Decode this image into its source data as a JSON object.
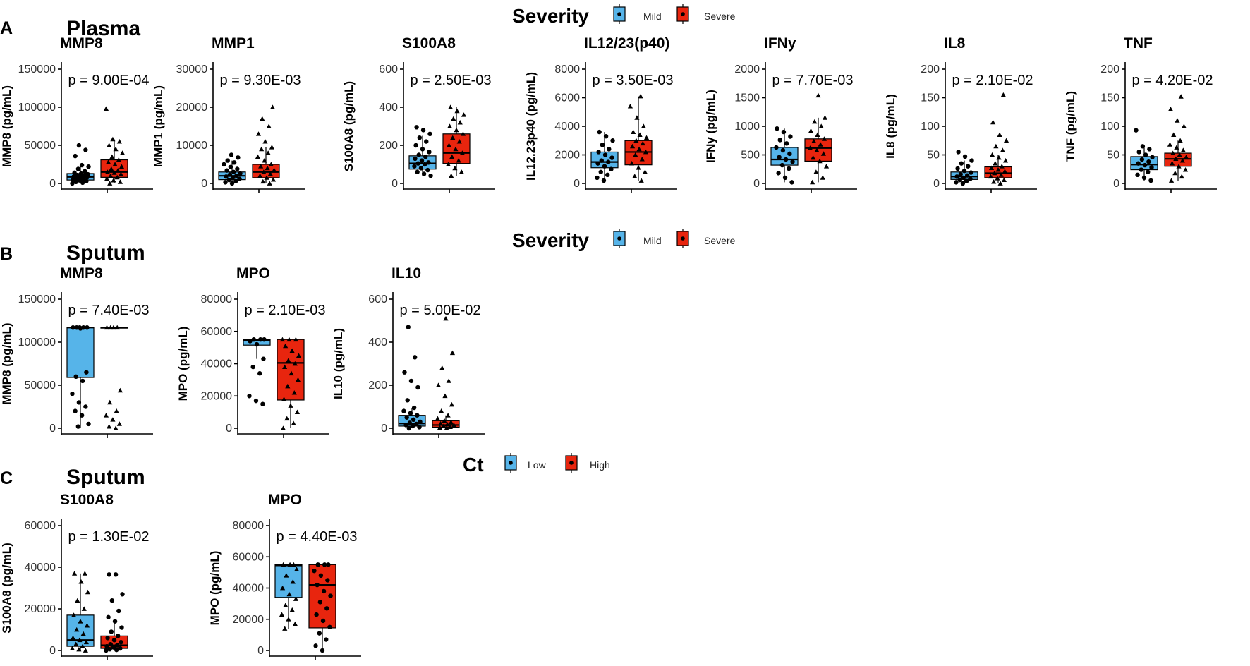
{
  "figure": {
    "panel_letters": [
      "A",
      "B",
      "C"
    ],
    "sections": [
      {
        "title": "Plasma",
        "legend": {
          "title": "Severity",
          "items": [
            {
              "label": "Mild",
              "color": "#56B4E9"
            },
            {
              "label": "Severe",
              "color": "#E8250E"
            }
          ]
        }
      },
      {
        "title": "Sputum",
        "legend": {
          "title": "Severity",
          "items": [
            {
              "label": "Mild",
              "color": "#56B4E9"
            },
            {
              "label": "Severe",
              "color": "#E8250E"
            }
          ]
        }
      },
      {
        "title": "Sputum",
        "legend": {
          "title": "Ct",
          "items": [
            {
              "label": "Low",
              "color": "#56B4E9"
            },
            {
              "label": "High",
              "color": "#E8250E"
            }
          ]
        }
      }
    ]
  },
  "chart_data": [
    {
      "type": "box",
      "panel": "A",
      "title": "MMP8",
      "ylabel": "MMP8 (pg/mL)",
      "pvalue": "p = 9.00E-04",
      "ylim": [
        0,
        150000
      ],
      "yticks": [
        0,
        50000,
        100000,
        150000
      ],
      "groups": [
        {
          "name": "Mild",
          "color": "#56B4E9",
          "marker": "circle",
          "q1": 4500,
          "median": 8500,
          "q3": 13000,
          "whisker_low": 0,
          "whisker_high": 24000,
          "points": [
            0,
            1000,
            2000,
            3000,
            4000,
            5000,
            6000,
            7000,
            8000,
            8500,
            9000,
            10000,
            11000,
            12000,
            13000,
            14000,
            16000,
            19000,
            22000,
            24000,
            36000,
            44000,
            50000
          ]
        },
        {
          "name": "Severe",
          "color": "#E8250E",
          "marker": "triangle",
          "q1": 8000,
          "median": 15000,
          "q3": 31000,
          "whisker_low": 0,
          "whisker_high": 58000,
          "points": [
            0,
            2000,
            4000,
            6000,
            8000,
            10000,
            12000,
            14000,
            15000,
            17000,
            19000,
            22000,
            25000,
            28000,
            31000,
            35000,
            40000,
            45000,
            50000,
            55000,
            58000,
            98000
          ]
        }
      ]
    },
    {
      "type": "box",
      "panel": "A",
      "title": "MMP1",
      "ylabel": "MMP1 (pg/mL)",
      "pvalue": "p = 9.30E-03",
      "ylim": [
        0,
        30000
      ],
      "yticks": [
        0,
        10000,
        20000,
        30000
      ],
      "groups": [
        {
          "name": "Mild",
          "color": "#56B4E9",
          "marker": "circle",
          "q1": 1000,
          "median": 2000,
          "q3": 3000,
          "whisker_low": 0,
          "whisker_high": 6000,
          "points": [
            0,
            300,
            600,
            900,
            1200,
            1500,
            1800,
            2000,
            2300,
            2600,
            3000,
            3400,
            3800,
            4300,
            5000,
            5500,
            6000,
            6800,
            7500
          ]
        },
        {
          "name": "Severe",
          "color": "#E8250E",
          "marker": "triangle",
          "q1": 1500,
          "median": 3000,
          "q3": 5000,
          "whisker_low": 0,
          "whisker_high": 9500,
          "points": [
            0,
            500,
            1000,
            1500,
            2000,
            2500,
            3000,
            3500,
            4000,
            4500,
            5000,
            6000,
            7000,
            8000,
            9000,
            9500,
            11000,
            13000,
            15000,
            17000,
            20000
          ]
        }
      ]
    },
    {
      "type": "box",
      "panel": "A",
      "title": "S100A8",
      "ylabel": "S100A8 (pg/mL)",
      "pvalue": "p = 2.50E-03",
      "ylim": [
        0,
        600
      ],
      "yticks": [
        0,
        200,
        400,
        600
      ],
      "groups": [
        {
          "name": "Mild",
          "color": "#56B4E9",
          "marker": "circle",
          "q1": 75,
          "median": 105,
          "q3": 145,
          "whisker_low": 40,
          "whisker_high": 250,
          "points": [
            40,
            50,
            60,
            70,
            80,
            90,
            100,
            105,
            110,
            120,
            130,
            140,
            150,
            165,
            180,
            200,
            220,
            240,
            260,
            280,
            295
          ]
        },
        {
          "name": "Severe",
          "color": "#E8250E",
          "marker": "triangle",
          "q1": 105,
          "median": 160,
          "q3": 260,
          "whisker_low": 40,
          "whisker_high": 400,
          "points": [
            40,
            60,
            80,
            100,
            120,
            140,
            160,
            180,
            200,
            220,
            240,
            260,
            280,
            300,
            320,
            340,
            360,
            380,
            400
          ]
        }
      ]
    },
    {
      "type": "box",
      "panel": "A",
      "title": "IL12/23(p40)",
      "ylabel": "IL12.23p40 (pg/mL)",
      "pvalue": "p = 3.50E-03",
      "ylim": [
        0,
        8000
      ],
      "yticks": [
        0,
        2000,
        4000,
        6000,
        8000
      ],
      "groups": [
        {
          "name": "Mild",
          "color": "#56B4E9",
          "marker": "circle",
          "q1": 1100,
          "median": 1500,
          "q3": 2200,
          "whisker_low": 200,
          "whisker_high": 3600,
          "points": [
            200,
            400,
            600,
            800,
            1000,
            1200,
            1400,
            1500,
            1600,
            1800,
            2000,
            2200,
            2400,
            2700,
            3000,
            3300,
            3600
          ]
        },
        {
          "name": "Severe",
          "color": "#E8250E",
          "marker": "triangle",
          "q1": 1300,
          "median": 2200,
          "q3": 3000,
          "whisker_low": 200,
          "whisker_high": 6100,
          "points": [
            200,
            500,
            800,
            1100,
            1400,
            1700,
            2000,
            2200,
            2400,
            2600,
            2800,
            3000,
            3200,
            3400,
            3600,
            4000,
            4600,
            5400,
            6100
          ]
        }
      ]
    },
    {
      "type": "box",
      "panel": "A",
      "title": "IFNy",
      "ylabel": "IFNy (pg/mL)",
      "pvalue": "p = 7.70E-03",
      "ylim": [
        0,
        2000
      ],
      "yticks": [
        0,
        500,
        1000,
        1500,
        2000
      ],
      "groups": [
        {
          "name": "Mild",
          "color": "#56B4E9",
          "marker": "circle",
          "q1": 320,
          "median": 420,
          "q3": 630,
          "whisker_low": 20,
          "whisker_high": 960,
          "points": [
            20,
            100,
            180,
            260,
            320,
            380,
            420,
            460,
            520,
            580,
            630,
            700,
            760,
            820,
            900,
            960
          ]
        },
        {
          "name": "Severe",
          "color": "#E8250E",
          "marker": "triangle",
          "q1": 390,
          "median": 620,
          "q3": 780,
          "whisker_low": 20,
          "whisker_high": 1150,
          "points": [
            20,
            100,
            200,
            300,
            390,
            450,
            520,
            580,
            620,
            680,
            740,
            780,
            850,
            920,
            1000,
            1080,
            1150,
            1540
          ]
        }
      ]
    },
    {
      "type": "box",
      "panel": "A",
      "title": "IL8",
      "ylabel": "IL8 (pg/mL)",
      "pvalue": "p = 2.10E-02",
      "ylim": [
        0,
        200
      ],
      "yticks": [
        0,
        50,
        100,
        150,
        200
      ],
      "groups": [
        {
          "name": "Mild",
          "color": "#56B4E9",
          "marker": "circle",
          "q1": 7,
          "median": 12,
          "q3": 20,
          "whisker_low": 0,
          "whisker_high": 40,
          "points": [
            0,
            2,
            4,
            6,
            8,
            10,
            12,
            14,
            16,
            19,
            22,
            26,
            30,
            35,
            40,
            47,
            55
          ]
        },
        {
          "name": "Severe",
          "color": "#E8250E",
          "marker": "triangle",
          "q1": 10,
          "median": 18,
          "q3": 29,
          "whisker_low": 0,
          "whisker_high": 50,
          "points": [
            0,
            3,
            6,
            9,
            12,
            15,
            18,
            21,
            24,
            27,
            30,
            35,
            40,
            45,
            50,
            58,
            65,
            75,
            85,
            107,
            155
          ]
        }
      ]
    },
    {
      "type": "box",
      "panel": "A",
      "title": "TNF",
      "ylabel": "TNF (pg/mL)",
      "pvalue": "p = 4.20E-02",
      "ylim": [
        0,
        200
      ],
      "yticks": [
        0,
        50,
        100,
        150,
        200
      ],
      "groups": [
        {
          "name": "Mild",
          "color": "#56B4E9",
          "marker": "circle",
          "q1": 24,
          "median": 33,
          "q3": 47,
          "whisker_low": 5,
          "whisker_high": 65,
          "points": [
            5,
            10,
            15,
            20,
            24,
            28,
            32,
            35,
            38,
            42,
            46,
            50,
            55,
            60,
            65,
            93
          ]
        },
        {
          "name": "Severe",
          "color": "#E8250E",
          "marker": "triangle",
          "q1": 30,
          "median": 43,
          "q3": 53,
          "whisker_low": 5,
          "whisker_high": 75,
          "points": [
            5,
            12,
            18,
            24,
            30,
            35,
            40,
            43,
            46,
            50,
            53,
            58,
            63,
            68,
            75,
            85,
            100,
            110,
            130,
            152
          ]
        }
      ]
    },
    {
      "type": "box",
      "panel": "B",
      "title": "MMP8",
      "ylabel": "MMP8 (pg/mL)",
      "pvalue": "p = 7.40E-03",
      "ylim": [
        0,
        150000
      ],
      "yticks": [
        0,
        50000,
        100000,
        150000
      ],
      "groups": [
        {
          "name": "Mild",
          "color": "#56B4E9",
          "marker": "circle",
          "q1": 59000,
          "median": 117000,
          "q3": 117000,
          "whisker_low": 0,
          "whisker_high": 117000,
          "points": [
            2000,
            5000,
            15000,
            20000,
            25000,
            30000,
            40000,
            55000,
            60000,
            65000,
            117000,
            117000,
            117000,
            117000,
            117000,
            116000
          ]
        },
        {
          "name": "Severe",
          "color": "#E8250E",
          "marker": "triangle",
          "q1": 117000,
          "median": 117000,
          "q3": 117500,
          "whisker_low": 116000,
          "whisker_high": 118000,
          "points": [
            0,
            2000,
            5000,
            10000,
            15000,
            20000,
            30000,
            44000,
            117000,
            117000,
            117000,
            117000
          ]
        }
      ]
    },
    {
      "type": "box",
      "panel": "B",
      "title": "MPO",
      "ylabel": "MPO (pg/mL)",
      "pvalue": "p = 2.10E-03",
      "ylim": [
        0,
        80000
      ],
      "yticks": [
        0,
        20000,
        40000,
        60000,
        80000
      ],
      "groups": [
        {
          "name": "Mild",
          "color": "#56B4E9",
          "marker": "circle",
          "q1": 51500,
          "median": 54500,
          "q3": 55000,
          "whisker_low": 43000,
          "whisker_high": 55000,
          "points": [
            15000,
            17000,
            20000,
            34000,
            38000,
            43000,
            52000,
            54000,
            55000,
            55000,
            55000
          ]
        },
        {
          "name": "Severe",
          "color": "#E8250E",
          "marker": "triangle",
          "q1": 17500,
          "median": 40500,
          "q3": 55000,
          "whisker_low": 0,
          "whisker_high": 55000,
          "points": [
            0,
            3000,
            6000,
            10000,
            14000,
            18000,
            22000,
            26000,
            30000,
            34000,
            38000,
            40000,
            42000,
            45000,
            48000,
            51000,
            55000,
            55000,
            55000
          ]
        }
      ]
    },
    {
      "type": "box",
      "panel": "B",
      "title": "IL10",
      "ylabel": "IL10 (pg/mL)",
      "pvalue": "p = 5.00E-02",
      "ylim": [
        0,
        600
      ],
      "yticks": [
        0,
        200,
        400,
        600
      ],
      "groups": [
        {
          "name": "Mild",
          "color": "#56B4E9",
          "marker": "circle",
          "q1": 10,
          "median": 22,
          "q3": 60,
          "whisker_low": 0,
          "whisker_high": 95,
          "points": [
            0,
            5,
            10,
            15,
            20,
            25,
            30,
            40,
            50,
            60,
            70,
            80,
            95,
            130,
            190,
            220,
            260,
            330,
            470
          ]
        },
        {
          "name": "Severe",
          "color": "#E8250E",
          "marker": "triangle",
          "q1": 5,
          "median": 15,
          "q3": 35,
          "whisker_low": 0,
          "whisker_high": 60,
          "points": [
            0,
            3,
            6,
            10,
            14,
            18,
            22,
            28,
            35,
            45,
            60,
            80,
            110,
            150,
            200,
            220,
            280,
            350,
            510
          ]
        }
      ]
    },
    {
      "type": "box",
      "panel": "C",
      "title": "S100A8",
      "ylabel": "S100A8 (pg/mL)",
      "pvalue": "p = 1.30E-02",
      "ylim": [
        0,
        60000
      ],
      "yticks": [
        0,
        20000,
        40000,
        60000
      ],
      "groups": [
        {
          "name": "Low",
          "color": "#56B4E9",
          "marker": "triangle",
          "q1": 2000,
          "median": 5000,
          "q3": 17000,
          "whisker_low": 0,
          "whisker_high": 37000,
          "points": [
            0,
            500,
            1000,
            2000,
            3000,
            4000,
            5000,
            6000,
            8000,
            10000,
            12000,
            14000,
            17000,
            20000,
            24000,
            28000,
            33000,
            37000,
            37000
          ]
        },
        {
          "name": "High",
          "color": "#E8250E",
          "marker": "circle",
          "q1": 1000,
          "median": 2500,
          "q3": 7000,
          "whisker_low": 0,
          "whisker_high": 14000,
          "points": [
            0,
            300,
            600,
            1000,
            1500,
            2000,
            2500,
            3000,
            4000,
            5000,
            6000,
            7000,
            9000,
            11000,
            14000,
            16000,
            19000,
            24000,
            27000,
            36500,
            36500
          ]
        }
      ]
    },
    {
      "type": "box",
      "panel": "C",
      "title": "MPO",
      "ylabel": "MPO (pg/mL)",
      "pvalue": "p = 4.40E-03",
      "ylim": [
        0,
        80000
      ],
      "yticks": [
        0,
        20000,
        40000,
        60000,
        80000
      ],
      "groups": [
        {
          "name": "Low",
          "color": "#56B4E9",
          "marker": "triangle",
          "q1": 34000,
          "median": 54500,
          "q3": 55000,
          "whisker_low": 14000,
          "whisker_high": 55000,
          "points": [
            14000,
            17000,
            20000,
            23000,
            26000,
            29000,
            33000,
            36000,
            40000,
            44000,
            48000,
            52000,
            55000,
            55000,
            55000
          ]
        },
        {
          "name": "High",
          "color": "#E8250E",
          "marker": "circle",
          "q1": 14500,
          "median": 42000,
          "q3": 55000,
          "whisker_low": 0,
          "whisker_high": 55000,
          "points": [
            0,
            3000,
            7000,
            11000,
            15000,
            19000,
            23000,
            27000,
            31000,
            35000,
            38000,
            42000,
            45000,
            48000,
            51000,
            55000,
            55000,
            55000
          ]
        }
      ]
    }
  ]
}
